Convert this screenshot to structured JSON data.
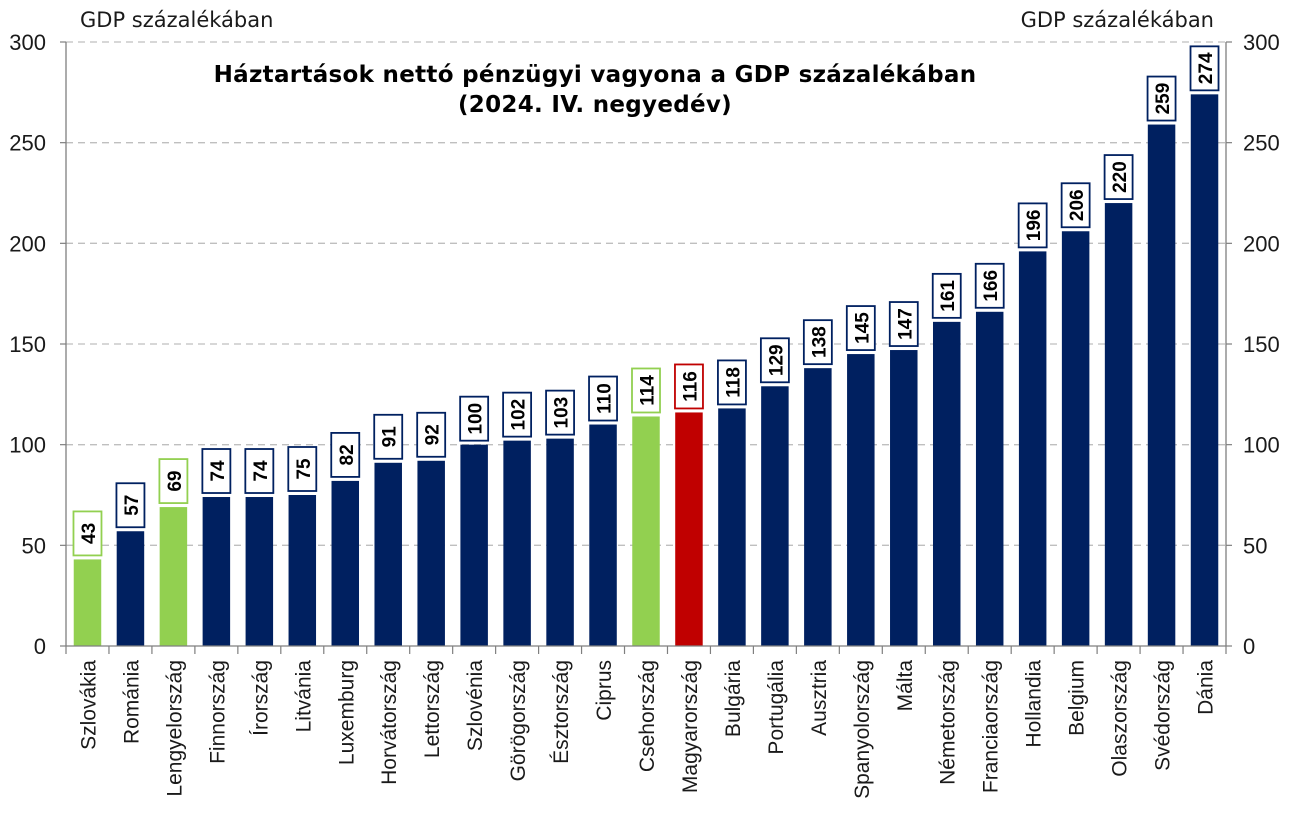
{
  "chart_data": {
    "type": "bar",
    "title": "Háztartások nettó pénzügyi vagyona a GDP százalékában",
    "subtitle": "(2024. IV. negyedév)",
    "ylabel_left": "GDP százalékában",
    "ylabel_right": "GDP százalékában",
    "ylim": [
      0,
      300
    ],
    "yticks": [
      0,
      50,
      100,
      150,
      200,
      250,
      300
    ],
    "grid": true,
    "categories": [
      "Szlovákia",
      "Románia",
      "Lengyelország",
      "Finnország",
      "Írország",
      "Litvánia",
      "Luxemburg",
      "Horvátország",
      "Lettország",
      "Szlovénia",
      "Görögország",
      "Észtország",
      "Ciprus",
      "Csehország",
      "Magyarország",
      "Bulgária",
      "Portugália",
      "Ausztria",
      "Spanyolország",
      "Málta",
      "Németország",
      "Franciaország",
      "Hollandia",
      "Belgium",
      "Olaszország",
      "Svédország",
      "Dánia"
    ],
    "values": [
      43,
      57,
      69,
      74,
      74,
      75,
      82,
      91,
      92,
      100,
      102,
      103,
      110,
      114,
      116,
      118,
      129,
      138,
      145,
      147,
      161,
      166,
      196,
      206,
      220,
      259,
      274
    ],
    "bar_colors": [
      "#92D050",
      "#002060",
      "#92D050",
      "#002060",
      "#002060",
      "#002060",
      "#002060",
      "#002060",
      "#002060",
      "#002060",
      "#002060",
      "#002060",
      "#002060",
      "#92D050",
      "#C00000",
      "#002060",
      "#002060",
      "#002060",
      "#002060",
      "#002060",
      "#002060",
      "#002060",
      "#002060",
      "#002060",
      "#002060",
      "#002060",
      "#002060"
    ],
    "colors": {
      "default": "#002060",
      "highlight_v4": "#92D050",
      "highlight_hu": "#C00000"
    }
  }
}
